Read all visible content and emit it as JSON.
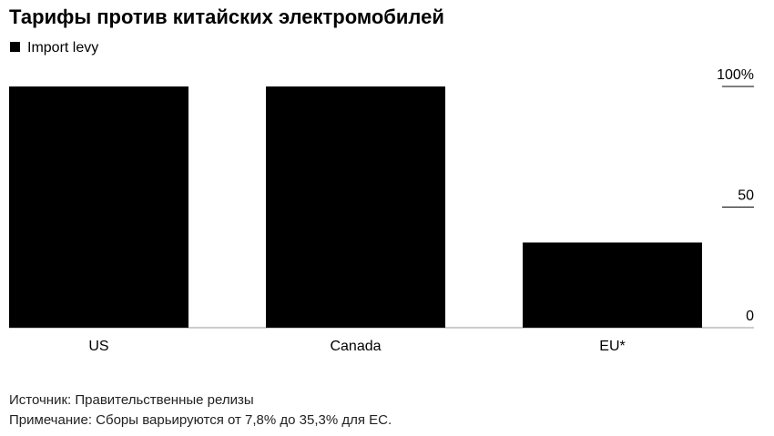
{
  "chart_data": {
    "type": "bar",
    "title": "Тарифы против китайских электромобилей",
    "legend": "Import levy",
    "categories": [
      "US",
      "Canada",
      "EU*"
    ],
    "values": [
      100,
      100,
      35.3
    ],
    "color": "#000000",
    "ylim": [
      0,
      100
    ],
    "yticks": [
      0,
      50,
      {
        "value": 100,
        "label": "100%"
      }
    ],
    "source": "Источник: Правительственные релизы",
    "note": "Примечание: Сборы варьируются от 7,8% до 35,3% для ЕС."
  }
}
